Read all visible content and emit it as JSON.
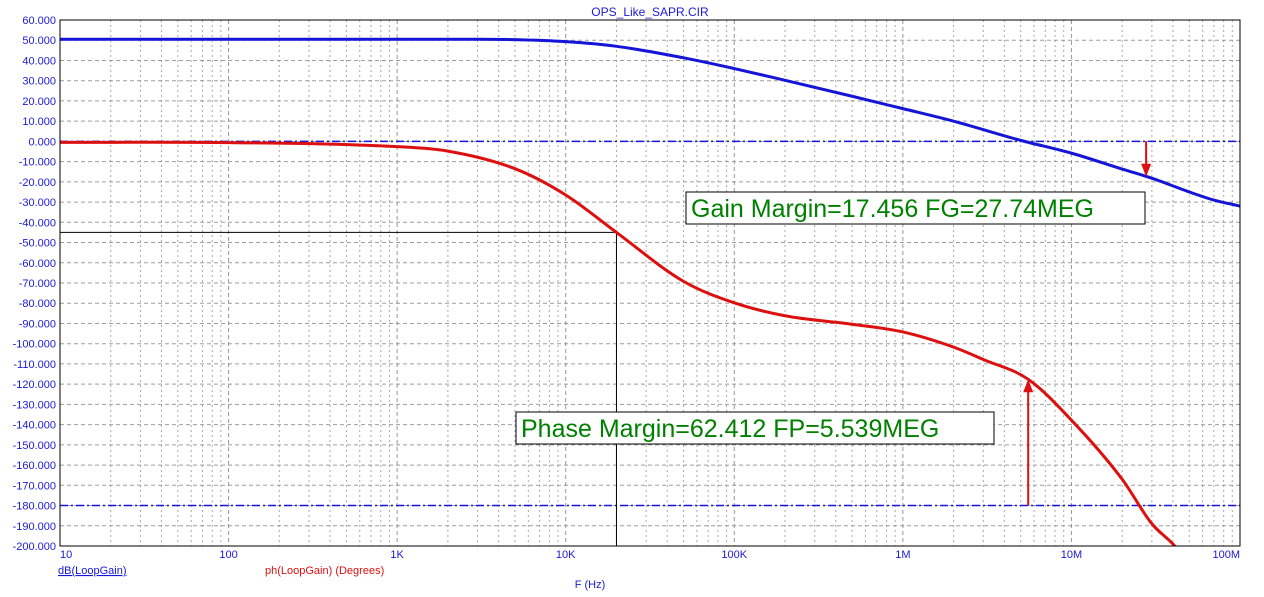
{
  "window_title": "OPS_Like_SAPR.CIR",
  "colors": {
    "gain": "#1515d8",
    "phase": "#dd1010",
    "text": "#1a1ad8",
    "annotation": "#008000",
    "grid": "#8c8c8c",
    "frame": "#000000"
  },
  "chart_data": {
    "type": "line",
    "title": "OPS_Like_SAPR.CIR",
    "xlabel": "F (Hz)",
    "x_scale": "log",
    "xlim": [
      10,
      100000000
    ],
    "ylim": [
      -200,
      60
    ],
    "grid": true,
    "x_tick_labels": [
      "10",
      "100",
      "1K",
      "10K",
      "100K",
      "1M",
      "10M",
      "100M"
    ],
    "y_tick_labels": [
      "60.000",
      "50.000",
      "40.000",
      "30.000",
      "20.000",
      "10.000",
      "0.000",
      "-10.000",
      "-20.000",
      "-30.000",
      "-40.000",
      "-50.000",
      "-60.000",
      "-70.000",
      "-80.000",
      "-90.000",
      "-100.000",
      "-110.000",
      "-120.000",
      "-130.000",
      "-140.000",
      "-150.000",
      "-160.000",
      "-170.000",
      "-180.000",
      "-190.000",
      "-200.000"
    ],
    "series": [
      {
        "name": "dB(LoopGain)",
        "color": "#1515d8",
        "x": [
          10,
          100,
          1000,
          3000,
          5000,
          10000,
          20000,
          50000,
          100000,
          200000,
          500000,
          1000000,
          2000000,
          5000000,
          10000000,
          20000000,
          30000000,
          50000000,
          70000000,
          100000000
        ],
        "y": [
          50.5,
          50.5,
          50.5,
          50.5,
          50.3,
          49.3,
          47,
          41.3,
          36,
          30.2,
          22.3,
          16.2,
          10,
          0.5,
          -5.8,
          -13.7,
          -18.2,
          -25,
          -29,
          -32
        ]
      },
      {
        "name": "ph(LoopGain) (Degrees)",
        "color": "#dd1010",
        "x": [
          10,
          100,
          1000,
          2000,
          5000,
          10000,
          20000,
          50000,
          100000,
          200000,
          500000,
          1000000,
          2000000,
          3000000,
          5539000,
          10000000,
          20000000,
          30000000,
          40000000,
          45000000
        ],
        "y": [
          -0.5,
          -0.6,
          -2.6,
          -4.8,
          -13.5,
          -26.5,
          -45,
          -69.2,
          -79.8,
          -86.2,
          -90.4,
          -94.2,
          -101.7,
          -107.8,
          -117.6,
          -137.8,
          -167,
          -189,
          -199,
          -204
        ]
      }
    ],
    "reference_lines": [
      {
        "y": 0,
        "style": "dash-dot",
        "color": "#1515d8"
      },
      {
        "y": -180,
        "style": "dash-dot",
        "color": "#1515d8"
      }
    ],
    "crosshair": {
      "x": 20000,
      "y": -45
    },
    "markers": [
      {
        "x": 27740000,
        "y_from": 0,
        "y_to": -17.456,
        "color": "#dd1010"
      },
      {
        "x": 5539000,
        "y_from": -180,
        "y_to": -117.588,
        "color": "#dd1010"
      }
    ],
    "annotations": [
      {
        "text": "Gain Margin=17.456 FG=27.74MEG"
      },
      {
        "text": "Phase Margin=62.412 FP=5.539MEG"
      }
    ],
    "legend": [
      "dB(LoopGain)",
      "ph(LoopGain) (Degrees)"
    ]
  }
}
